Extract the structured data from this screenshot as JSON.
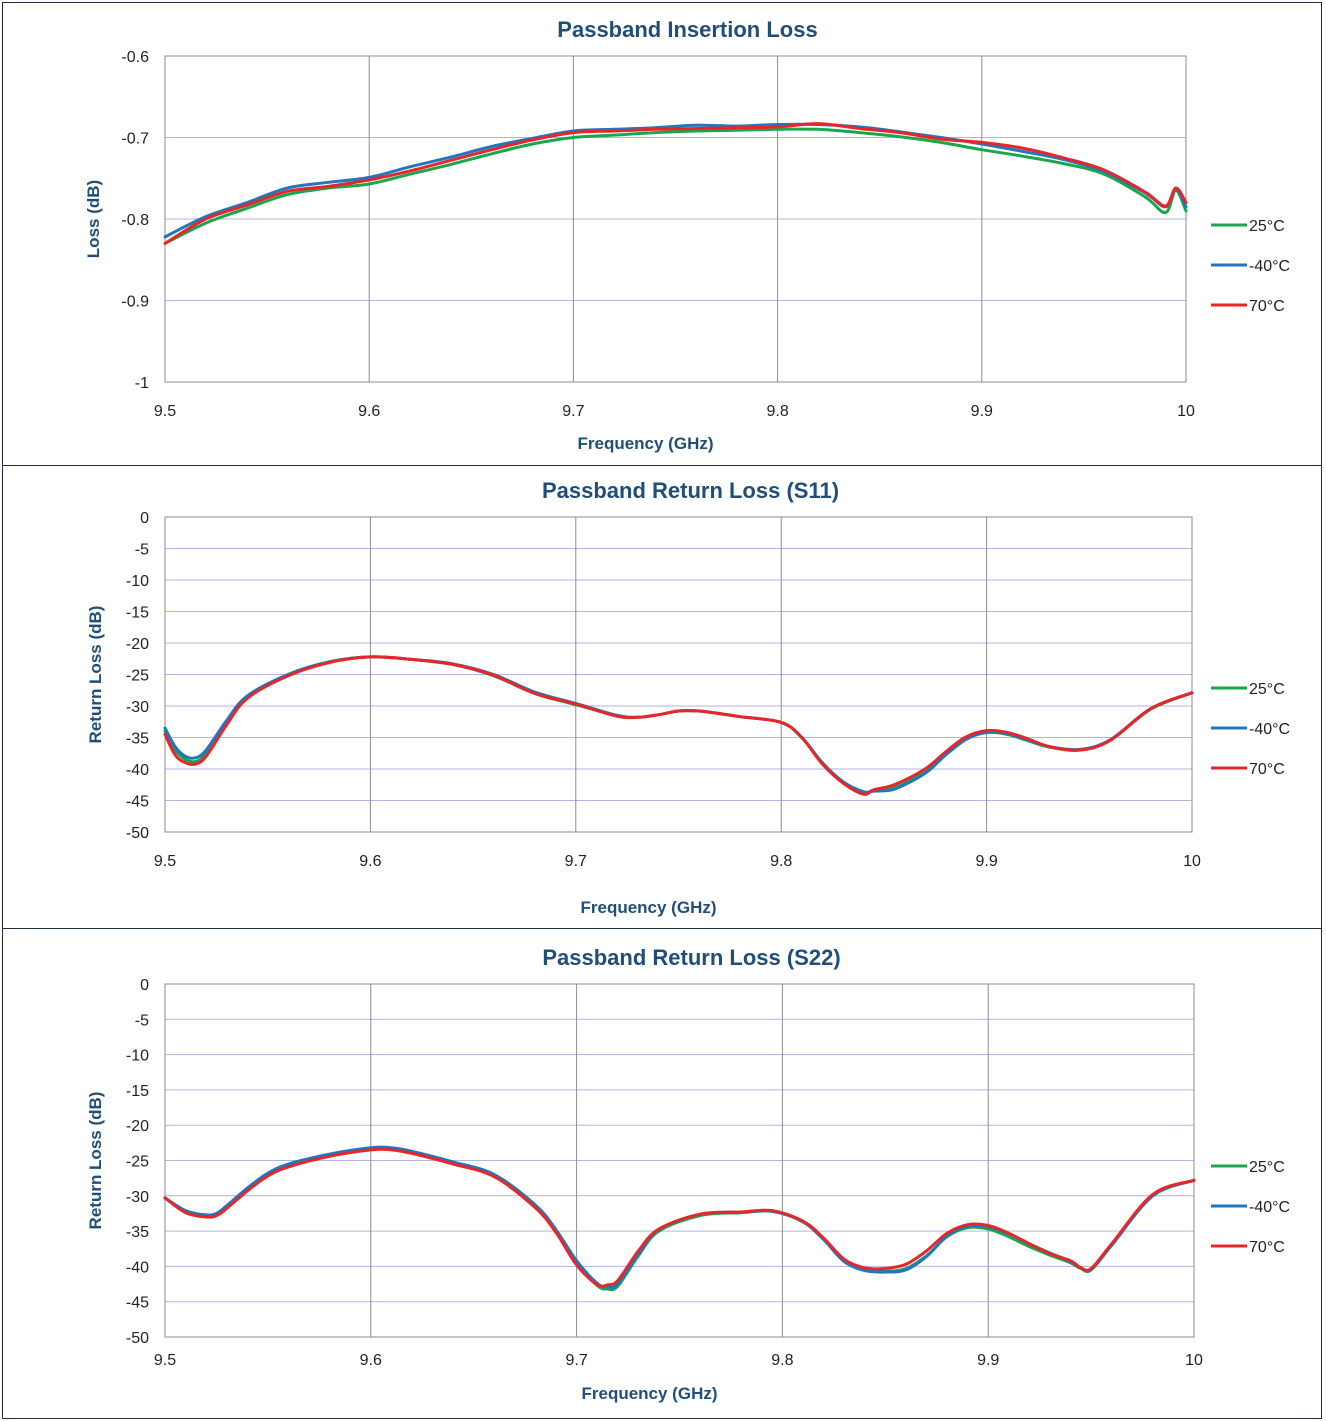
{
  "chart_data": [
    {
      "type": "line",
      "title": "Passband Insertion Loss",
      "xlabel": "Frequency (GHz)",
      "ylabel": "Loss (dB)",
      "xlim": [
        9.5,
        10
      ],
      "ylim": [
        -1,
        -0.6
      ],
      "xticks": [
        9.5,
        9.6,
        9.7,
        9.8,
        9.9,
        10
      ],
      "yticks": [
        -0.6,
        -0.7,
        -0.8,
        -0.9,
        -1
      ],
      "xtick_labels": [
        "9.5",
        "9.6",
        "9.7",
        "9.8",
        "9.9",
        "10"
      ],
      "ytick_labels": [
        "-0.6",
        "-0.7",
        "-0.8",
        "-0.9",
        "-1"
      ],
      "grid": true,
      "legend": "right",
      "series": [
        {
          "name": "25°C",
          "color": "#1aa64b",
          "x": [
            9.5,
            9.52,
            9.54,
            9.56,
            9.58,
            9.6,
            9.62,
            9.64,
            9.66,
            9.68,
            9.7,
            9.72,
            9.74,
            9.76,
            9.78,
            9.8,
            9.82,
            9.84,
            9.86,
            9.88,
            9.9,
            9.92,
            9.94,
            9.96,
            9.98,
            9.99,
            9.995,
            10
          ],
          "y": [
            -0.83,
            -0.805,
            -0.787,
            -0.77,
            -0.762,
            -0.757,
            -0.745,
            -0.733,
            -0.72,
            -0.708,
            -0.7,
            -0.697,
            -0.694,
            -0.692,
            -0.691,
            -0.69,
            -0.69,
            -0.694,
            -0.699,
            -0.706,
            -0.715,
            -0.723,
            -0.732,
            -0.745,
            -0.773,
            -0.792,
            -0.765,
            -0.79
          ]
        },
        {
          "name": "-40°C",
          "color": "#1f77c0",
          "x": [
            9.5,
            9.52,
            9.54,
            9.56,
            9.58,
            9.6,
            9.62,
            9.64,
            9.66,
            9.68,
            9.7,
            9.72,
            9.74,
            9.76,
            9.78,
            9.8,
            9.82,
            9.84,
            9.86,
            9.88,
            9.9,
            9.92,
            9.94,
            9.96,
            9.98,
            9.99,
            9.995,
            10
          ],
          "y": [
            -0.822,
            -0.797,
            -0.78,
            -0.762,
            -0.755,
            -0.749,
            -0.736,
            -0.724,
            -0.711,
            -0.701,
            -0.692,
            -0.69,
            -0.688,
            -0.685,
            -0.686,
            -0.684,
            -0.684,
            -0.687,
            -0.693,
            -0.7,
            -0.708,
            -0.717,
            -0.727,
            -0.742,
            -0.768,
            -0.785,
            -0.763,
            -0.785
          ]
        },
        {
          "name": "70°C",
          "color": "#e8262a",
          "x": [
            9.5,
            9.52,
            9.54,
            9.56,
            9.58,
            9.6,
            9.62,
            9.64,
            9.66,
            9.68,
            9.7,
            9.72,
            9.74,
            9.76,
            9.78,
            9.8,
            9.82,
            9.84,
            9.86,
            9.88,
            9.9,
            9.92,
            9.94,
            9.96,
            9.98,
            9.99,
            9.995,
            10
          ],
          "y": [
            -0.83,
            -0.8,
            -0.783,
            -0.766,
            -0.76,
            -0.752,
            -0.741,
            -0.728,
            -0.715,
            -0.703,
            -0.694,
            -0.692,
            -0.69,
            -0.689,
            -0.688,
            -0.687,
            -0.683,
            -0.689,
            -0.694,
            -0.702,
            -0.706,
            -0.713,
            -0.725,
            -0.74,
            -0.767,
            -0.784,
            -0.762,
            -0.78
          ]
        }
      ]
    },
    {
      "type": "line",
      "title": "Passband Return Loss (S11)",
      "xlabel": "Frequency (GHz)",
      "ylabel": "Return Loss (dB)",
      "xlim": [
        9.5,
        10
      ],
      "ylim": [
        -50,
        0
      ],
      "xticks": [
        9.5,
        9.6,
        9.7,
        9.8,
        9.9,
        10
      ],
      "yticks": [
        0,
        -5,
        -10,
        -15,
        -20,
        -25,
        -30,
        -35,
        -40,
        -45,
        -50
      ],
      "xtick_labels": [
        "9.5",
        "9.6",
        "9.7",
        "9.8",
        "9.9",
        "10"
      ],
      "ytick_labels": [
        "0",
        "-5",
        "-10",
        "-15",
        "-20",
        "-25",
        "-30",
        "-35",
        "-40",
        "-45",
        "-50"
      ],
      "grid": true,
      "legend": "right",
      "series": [
        {
          "name": "25°C",
          "color": "#1aa64b",
          "x": [
            9.5,
            9.505,
            9.51,
            9.515,
            9.52,
            9.53,
            9.54,
            9.56,
            9.58,
            9.6,
            9.62,
            9.64,
            9.66,
            9.68,
            9.7,
            9.72,
            9.73,
            9.74,
            9.75,
            9.76,
            9.77,
            9.78,
            9.8,
            9.81,
            9.82,
            9.83,
            9.84,
            9.845,
            9.855,
            9.87,
            9.88,
            9.89,
            9.9,
            9.91,
            9.92,
            9.93,
            9.945,
            9.96,
            9.98,
            10
          ],
          "y": [
            -34,
            -37,
            -38.5,
            -38.8,
            -37.5,
            -32.5,
            -28.5,
            -25,
            -23,
            -22.2,
            -22.6,
            -23.4,
            -25.2,
            -28,
            -29.8,
            -31.5,
            -31.8,
            -31.4,
            -30.8,
            -30.8,
            -31.2,
            -31.7,
            -32.6,
            -35,
            -39,
            -42,
            -43.8,
            -43.4,
            -43,
            -40.5,
            -37.7,
            -35.2,
            -34.2,
            -34.5,
            -35.5,
            -36.5,
            -37,
            -35.5,
            -30.5,
            -27.9
          ]
        },
        {
          "name": "-40°C",
          "color": "#1f77c0",
          "x": [
            9.5,
            9.505,
            9.51,
            9.515,
            9.52,
            9.53,
            9.54,
            9.56,
            9.58,
            9.6,
            9.62,
            9.64,
            9.66,
            9.68,
            9.7,
            9.72,
            9.73,
            9.74,
            9.75,
            9.76,
            9.77,
            9.78,
            9.8,
            9.81,
            9.82,
            9.83,
            9.84,
            9.845,
            9.855,
            9.87,
            9.88,
            9.89,
            9.9,
            9.91,
            9.92,
            9.93,
            9.945,
            9.96,
            9.98,
            10
          ],
          "y": [
            -33.5,
            -36.5,
            -38,
            -38.2,
            -37,
            -32.3,
            -28.4,
            -25,
            -23,
            -22.2,
            -22.6,
            -23.3,
            -25,
            -27.8,
            -29.6,
            -31.5,
            -31.8,
            -31.4,
            -30.8,
            -30.8,
            -31.2,
            -31.7,
            -32.6,
            -35,
            -39,
            -42,
            -43.6,
            -43.5,
            -43.2,
            -40.7,
            -37.8,
            -35.3,
            -34.2,
            -34.4,
            -35.4,
            -36.4,
            -36.9,
            -35.4,
            -30.4,
            -27.9
          ]
        },
        {
          "name": "70°C",
          "color": "#e8262a",
          "x": [
            9.5,
            9.505,
            9.51,
            9.515,
            9.52,
            9.53,
            9.54,
            9.56,
            9.58,
            9.6,
            9.62,
            9.64,
            9.66,
            9.68,
            9.7,
            9.72,
            9.73,
            9.74,
            9.75,
            9.76,
            9.77,
            9.78,
            9.8,
            9.81,
            9.82,
            9.83,
            9.84,
            9.845,
            9.855,
            9.87,
            9.88,
            9.89,
            9.9,
            9.91,
            9.92,
            9.93,
            9.945,
            9.96,
            9.98,
            10
          ],
          "y": [
            -34.5,
            -37.8,
            -39,
            -39.2,
            -38,
            -33,
            -28.8,
            -25.2,
            -23.1,
            -22.2,
            -22.6,
            -23.4,
            -25.1,
            -28,
            -29.7,
            -31.6,
            -31.8,
            -31.4,
            -30.8,
            -30.8,
            -31.2,
            -31.7,
            -32.6,
            -35,
            -39.2,
            -42.2,
            -44,
            -43.3,
            -42.5,
            -40,
            -37.3,
            -34.9,
            -33.9,
            -34.2,
            -35.2,
            -36.4,
            -37,
            -35.5,
            -30.4,
            -27.9
          ]
        }
      ]
    },
    {
      "type": "line",
      "title": "Passband Return Loss (S22)",
      "xlabel": "Frequency (GHz)",
      "ylabel": "Return Loss (dB)",
      "xlim": [
        9.5,
        10
      ],
      "ylim": [
        -50,
        0
      ],
      "xticks": [
        9.5,
        9.6,
        9.7,
        9.8,
        9.9,
        10
      ],
      "yticks": [
        0,
        -5,
        -10,
        -15,
        -20,
        -25,
        -30,
        -35,
        -40,
        -45,
        -50
      ],
      "xtick_labels": [
        "9.5",
        "9.6",
        "9.7",
        "9.8",
        "9.9",
        "10"
      ],
      "ytick_labels": [
        "0",
        "-5",
        "-10",
        "-15",
        "-20",
        "-25",
        "-30",
        "-35",
        "-40",
        "-45",
        "-50"
      ],
      "grid": true,
      "legend": "right",
      "series": [
        {
          "name": "25°C",
          "color": "#1aa64b",
          "x": [
            9.5,
            9.51,
            9.52,
            9.525,
            9.53,
            9.54,
            9.55,
            9.56,
            9.58,
            9.6,
            9.61,
            9.62,
            9.64,
            9.66,
            9.68,
            9.69,
            9.7,
            9.71,
            9.715,
            9.72,
            9.73,
            9.74,
            9.76,
            9.78,
            9.795,
            9.81,
            9.82,
            9.83,
            9.84,
            9.85,
            9.86,
            9.87,
            9.88,
            9.89,
            9.9,
            9.91,
            9.92,
            9.93,
            9.94,
            9.945,
            9.95,
            9.96,
            9.98,
            10
          ],
          "y": [
            -30.3,
            -32.2,
            -32.8,
            -32.6,
            -31.5,
            -29,
            -27,
            -25.6,
            -24.2,
            -23.3,
            -23.3,
            -23.8,
            -25.3,
            -27.2,
            -31.5,
            -35,
            -39.5,
            -42.7,
            -43.2,
            -42.8,
            -38.5,
            -35,
            -32.8,
            -32.4,
            -32.2,
            -33.6,
            -36,
            -39,
            -40.5,
            -40.7,
            -40.3,
            -38.5,
            -35.8,
            -34.5,
            -34.7,
            -35.8,
            -37.2,
            -38.4,
            -39.5,
            -40.3,
            -40.5,
            -37,
            -30,
            -27.8
          ]
        },
        {
          "name": "-40°C",
          "color": "#1f77c0",
          "x": [
            9.5,
            9.51,
            9.52,
            9.525,
            9.53,
            9.54,
            9.55,
            9.56,
            9.58,
            9.6,
            9.61,
            9.62,
            9.64,
            9.66,
            9.68,
            9.69,
            9.7,
            9.71,
            9.715,
            9.72,
            9.73,
            9.74,
            9.76,
            9.78,
            9.795,
            9.81,
            9.82,
            9.83,
            9.84,
            9.85,
            9.86,
            9.87,
            9.88,
            9.89,
            9.9,
            9.91,
            9.92,
            9.93,
            9.94,
            9.945,
            9.95,
            9.96,
            9.98,
            10
          ],
          "y": [
            -30.3,
            -32.1,
            -32.7,
            -32.5,
            -31.4,
            -28.9,
            -26.8,
            -25.5,
            -24.1,
            -23.2,
            -23.2,
            -23.7,
            -25.2,
            -27,
            -31.3,
            -34.8,
            -39.2,
            -42.4,
            -42.9,
            -42.5,
            -38.3,
            -34.8,
            -32.6,
            -32.3,
            -32.2,
            -33.7,
            -36.2,
            -39.3,
            -40.6,
            -40.8,
            -40.5,
            -38.6,
            -35.7,
            -34.3,
            -34.4,
            -35.4,
            -36.8,
            -38.1,
            -39.3,
            -40.2,
            -40.4,
            -37,
            -30,
            -27.8
          ]
        },
        {
          "name": "70°C",
          "color": "#e8262a",
          "x": [
            9.5,
            9.51,
            9.52,
            9.525,
            9.53,
            9.54,
            9.55,
            9.56,
            9.58,
            9.6,
            9.61,
            9.62,
            9.64,
            9.66,
            9.68,
            9.69,
            9.7,
            9.71,
            9.715,
            9.72,
            9.73,
            9.74,
            9.76,
            9.78,
            9.795,
            9.81,
            9.82,
            9.83,
            9.84,
            9.85,
            9.86,
            9.87,
            9.88,
            9.89,
            9.9,
            9.91,
            9.92,
            9.93,
            9.94,
            9.945,
            9.95,
            9.96,
            9.98,
            10
          ],
          "y": [
            -30.3,
            -32.4,
            -33,
            -32.8,
            -31.8,
            -29.3,
            -27.2,
            -25.9,
            -24.4,
            -23.5,
            -23.5,
            -24,
            -25.5,
            -27.3,
            -31.7,
            -35.2,
            -39.8,
            -42.6,
            -42.6,
            -42,
            -37.8,
            -34.7,
            -32.6,
            -32.3,
            -32.1,
            -33.6,
            -36,
            -39,
            -40.2,
            -40.3,
            -39.7,
            -37.8,
            -35.3,
            -34.1,
            -34.2,
            -35.3,
            -36.8,
            -38.2,
            -39.2,
            -40.2,
            -40.3,
            -36.8,
            -29.8,
            -27.8
          ]
        }
      ]
    }
  ]
}
